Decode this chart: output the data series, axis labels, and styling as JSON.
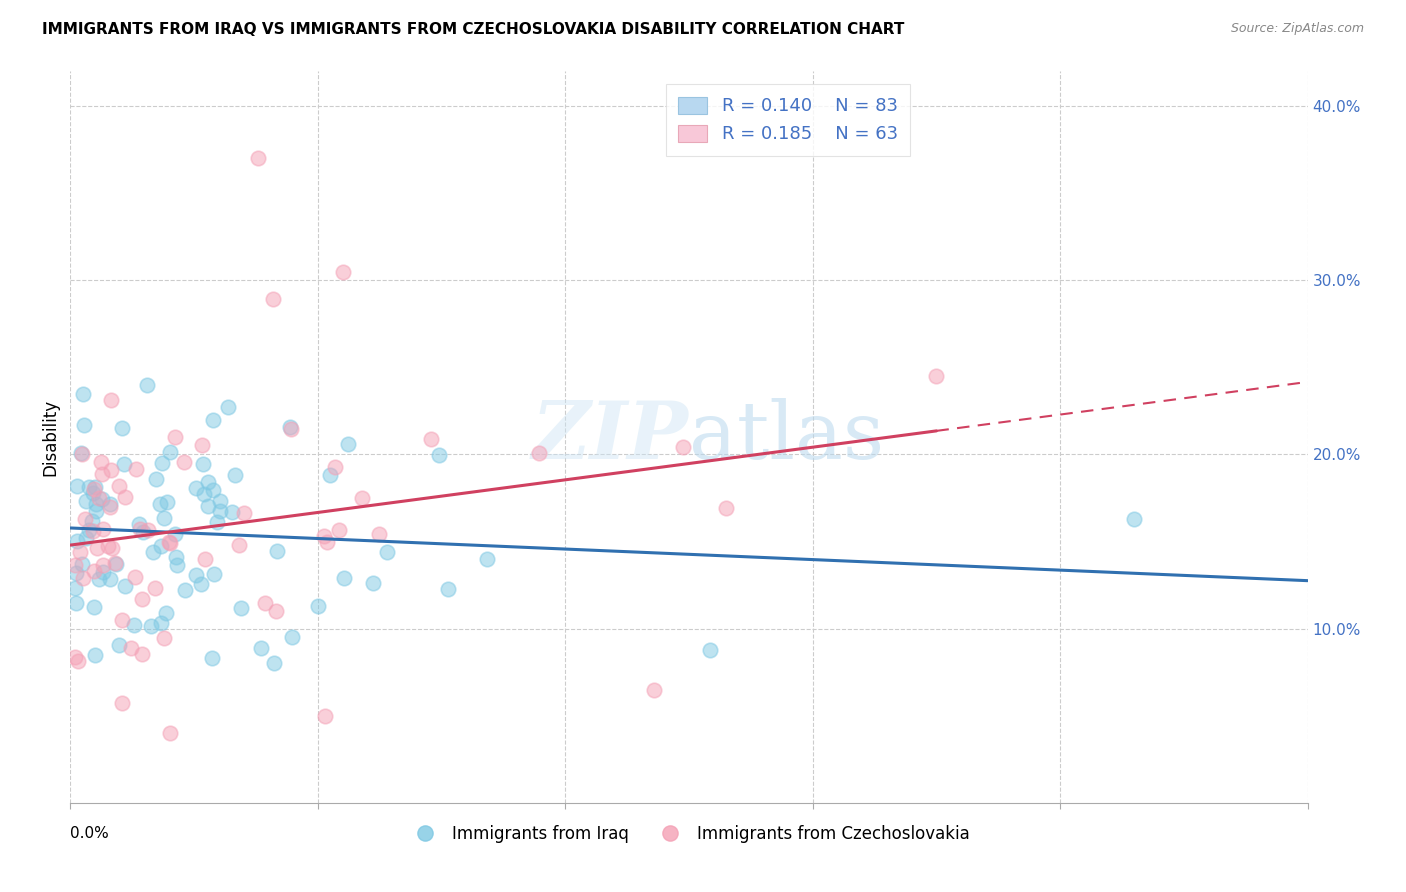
{
  "title": "IMMIGRANTS FROM IRAQ VS IMMIGRANTS FROM CZECHOSLOVAKIA DISABILITY CORRELATION CHART",
  "source": "Source: ZipAtlas.com",
  "ylabel": "Disability",
  "xlim": [
    0.0,
    0.25
  ],
  "ylim": [
    0.0,
    0.42
  ],
  "yticks": [
    0.1,
    0.2,
    0.3,
    0.4
  ],
  "ytick_labels": [
    "10.0%",
    "20.0%",
    "30.0%",
    "40.0%"
  ],
  "legend_iraq_R": "0.140",
  "legend_iraq_N": "83",
  "legend_czech_R": "0.185",
  "legend_czech_N": "63",
  "iraq_color": "#7ec8e3",
  "czech_color": "#f4a0b5",
  "iraq_line_color": "#3070b0",
  "czech_line_color": "#d04060",
  "iraq_scatter_alpha": 0.5,
  "czech_scatter_alpha": 0.5,
  "scatter_size": 110,
  "watermark_color": "#cce4f4",
  "watermark_alpha": 0.45
}
